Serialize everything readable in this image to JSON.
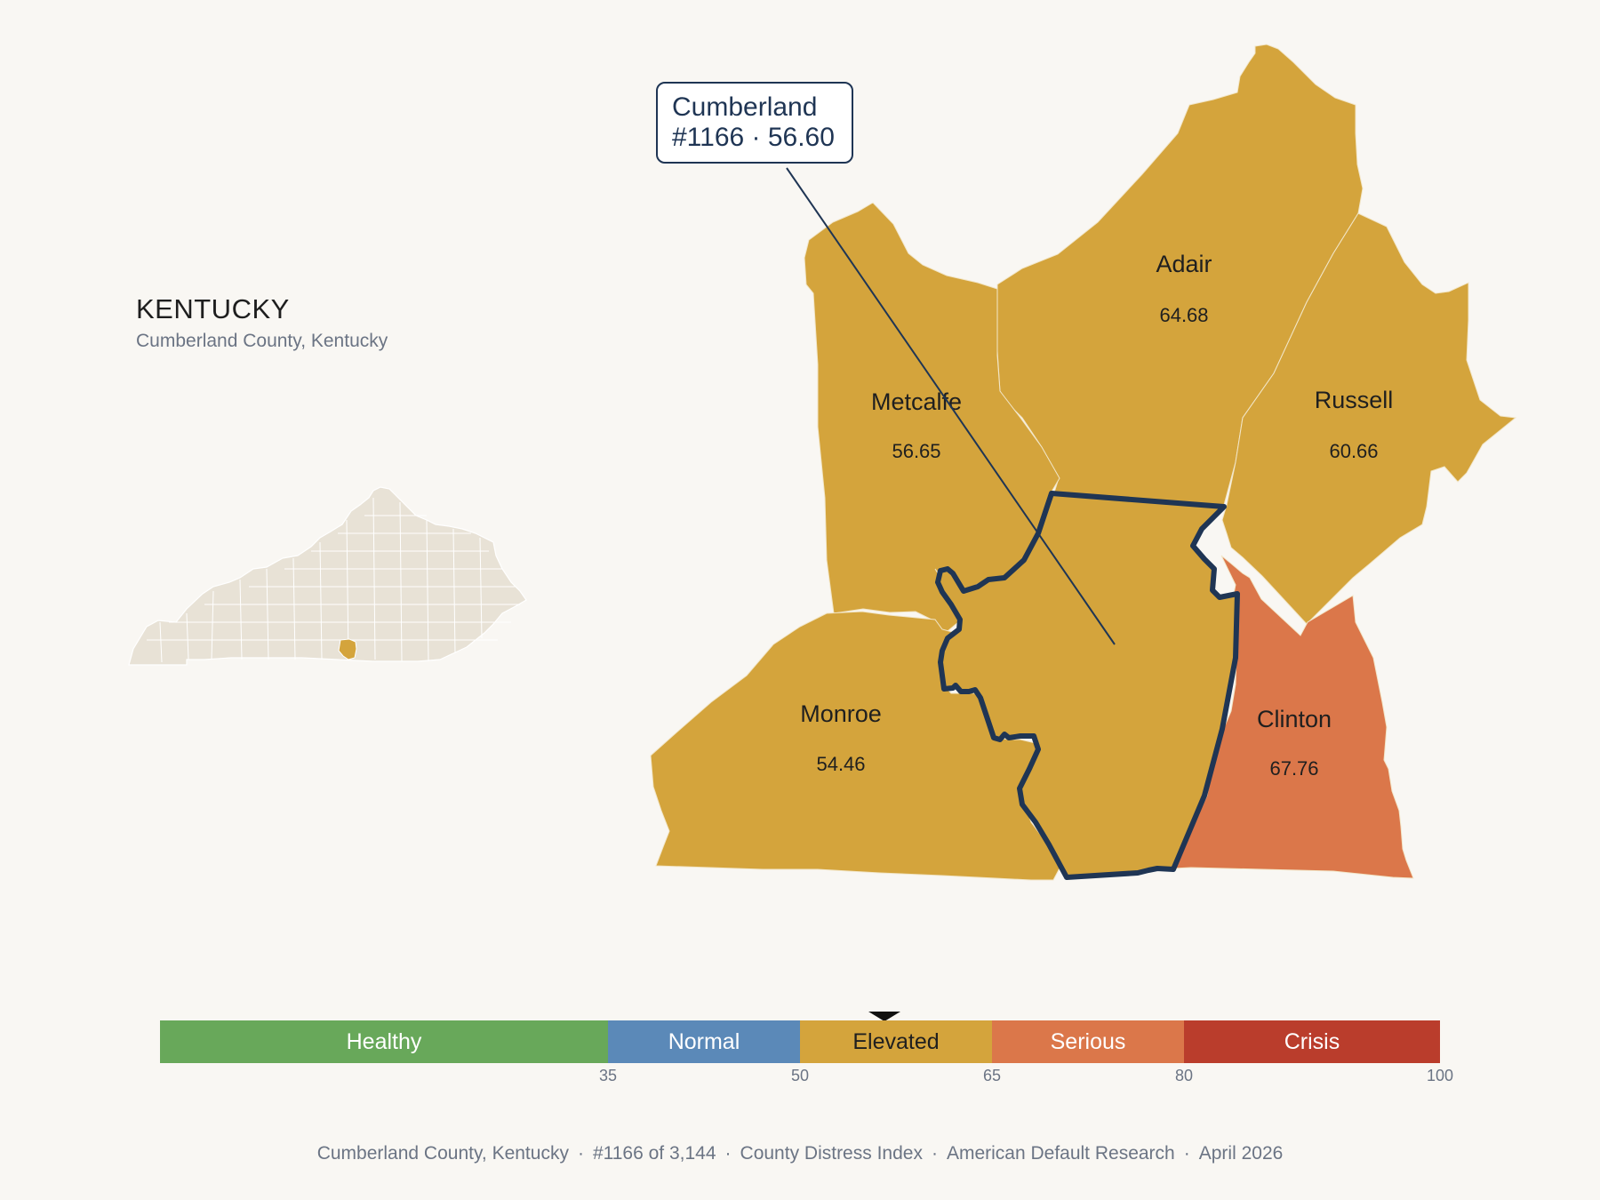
{
  "header": {
    "state": "KENTUCKY",
    "subtitle": "Cumberland County, Kentucky"
  },
  "callout": {
    "line1": "Cumberland",
    "line2": "#1166 · 56.60"
  },
  "counties": [
    {
      "name": "Adair",
      "value": "64.68",
      "color": "#d4a43c"
    },
    {
      "name": "Metcalfe",
      "value": "56.65",
      "color": "#d4a43c"
    },
    {
      "name": "Russell",
      "value": "60.66",
      "color": "#d4a43c"
    },
    {
      "name": "Monroe",
      "value": "54.46",
      "color": "#d4a43c"
    },
    {
      "name": "Clinton",
      "value": "67.76",
      "color": "#db774a"
    },
    {
      "name": "Cumberland",
      "value": "56.60",
      "color": "#d4a43c",
      "highlighted": true
    }
  ],
  "scale": {
    "min": 0,
    "max": 100,
    "marker_value": 56.6,
    "segments": [
      {
        "label": "Healthy",
        "from": 0,
        "to": 35,
        "color": "#68a85a"
      },
      {
        "label": "Normal",
        "from": 35,
        "to": 50,
        "color": "#5b89b8"
      },
      {
        "label": "Elevated",
        "from": 50,
        "to": 65,
        "color": "#d4a43c"
      },
      {
        "label": "Serious",
        "from": 65,
        "to": 80,
        "color": "#db774a"
      },
      {
        "label": "Crisis",
        "from": 80,
        "to": 100,
        "color": "#ba3d2c"
      }
    ],
    "ticks": [
      "35",
      "50",
      "65",
      "80",
      "100"
    ]
  },
  "footer": {
    "county": "Cumberland County, Kentucky",
    "rank": "#1166 of 3,144",
    "index": "County Distress Index",
    "source": "American Default Research",
    "date": "April 2026"
  },
  "colors": {
    "background": "#f9f7f3",
    "highlight_outline": "#1f3554",
    "inset_fill": "#e8e2d6"
  }
}
